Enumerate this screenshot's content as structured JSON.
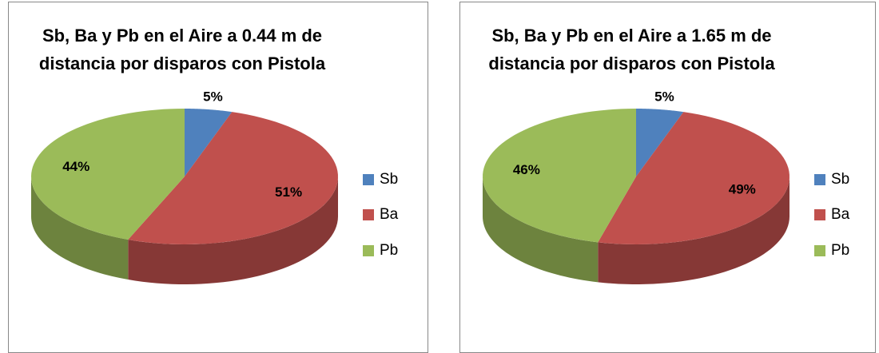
{
  "chart_data": [
    {
      "type": "pie3d",
      "title": "Sb, Ba y Pb en el Aire a 0.44 m de distancia por disparos con Pistola",
      "categories": [
        "Sb",
        "Ba",
        "Pb"
      ],
      "values": [
        5,
        51,
        44
      ],
      "value_labels": [
        "5%",
        "51%",
        "44%"
      ],
      "colors": [
        "#4f81bd",
        "#c0504d",
        "#9bbb59"
      ],
      "legend": "right"
    },
    {
      "type": "pie3d",
      "title": "Sb, Ba y Pb en el Aire a 1.65 m de distancia por disparos con Pistola",
      "categories": [
        "Sb",
        "Ba",
        "Pb"
      ],
      "values": [
        5,
        49,
        46
      ],
      "value_labels": [
        "5%",
        "49%",
        "46%"
      ],
      "colors": [
        "#4f81bd",
        "#c0504d",
        "#9bbb59"
      ],
      "legend": "right"
    }
  ]
}
